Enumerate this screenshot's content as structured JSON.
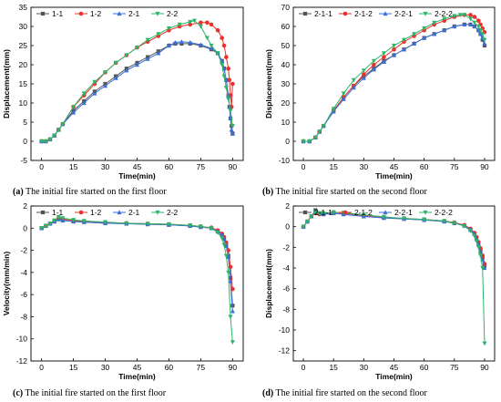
{
  "colors": {
    "s1": "#555555",
    "s2": "#e8322d",
    "s3": "#3b6fd8",
    "s4": "#2db56a"
  },
  "chart_data": [
    {
      "type": "line",
      "caption_label": "(a)",
      "caption_text": " The initial fire started on the first floor",
      "xlabel": "Time(min)",
      "ylabel": "Displacement(mm)",
      "xlim": [
        -5,
        95
      ],
      "ylim": [
        -5,
        35
      ],
      "xticks": [
        0,
        15,
        30,
        45,
        60,
        75,
        90
      ],
      "yticks": [
        -5,
        0,
        5,
        10,
        15,
        20,
        25,
        30,
        35
      ],
      "legend": "top-left",
      "series": [
        {
          "name": "1-1",
          "color": "#555555",
          "marker": "square",
          "x": [
            0,
            2,
            4,
            6,
            8,
            10,
            15,
            20,
            25,
            30,
            35,
            40,
            45,
            50,
            55,
            60,
            63,
            66,
            70,
            75,
            80,
            83,
            85,
            86,
            87,
            88,
            88.5,
            89,
            89.5,
            90
          ],
          "y": [
            0,
            0,
            0.5,
            1.5,
            3,
            4.5,
            8,
            10.5,
            13,
            15,
            17,
            19,
            20.5,
            22,
            23.5,
            25,
            25.5,
            25.5,
            25.5,
            25,
            24,
            23,
            21,
            19,
            16,
            12,
            9,
            6,
            4,
            2
          ]
        },
        {
          "name": "1-2",
          "color": "#e8322d",
          "marker": "circle",
          "x": [
            0,
            2,
            4,
            6,
            8,
            10,
            15,
            20,
            25,
            30,
            35,
            40,
            45,
            50,
            55,
            60,
            65,
            70,
            75,
            78,
            80,
            83,
            85,
            86,
            87,
            88,
            88.5,
            89,
            89.5,
            90
          ],
          "y": [
            0,
            0,
            0.5,
            1.5,
            3,
            4.5,
            9,
            12,
            15,
            18,
            20.5,
            22.5,
            24.5,
            26,
            27.5,
            29,
            30,
            30.5,
            31,
            31,
            30.5,
            29,
            27,
            25,
            22,
            19,
            16,
            12,
            9,
            15
          ]
        },
        {
          "name": "2-1",
          "color": "#3b6fd8",
          "marker": "triangle",
          "x": [
            0,
            2,
            4,
            6,
            8,
            10,
            15,
            20,
            25,
            30,
            35,
            40,
            45,
            50,
            55,
            60,
            63,
            66,
            70,
            75,
            80,
            83,
            85,
            86,
            87,
            88,
            88.5,
            89,
            89.5,
            90
          ],
          "y": [
            0,
            0,
            0.5,
            1.5,
            3,
            4.5,
            7.5,
            10,
            12.5,
            14.5,
            16.5,
            18.5,
            20,
            21.5,
            23,
            25,
            25.8,
            26,
            25.8,
            25.2,
            24.3,
            23,
            21,
            19,
            16,
            12,
            9,
            6,
            3,
            2
          ]
        },
        {
          "name": "2-2",
          "color": "#2db56a",
          "marker": "triangle-down",
          "x": [
            0,
            2,
            4,
            6,
            8,
            10,
            15,
            20,
            25,
            30,
            35,
            40,
            45,
            50,
            55,
            60,
            65,
            70,
            72,
            75,
            78,
            80,
            83,
            85,
            86,
            87,
            88,
            89,
            90
          ],
          "y": [
            0,
            0,
            0.5,
            1.5,
            3,
            4.5,
            9,
            12.5,
            15.5,
            18,
            20.5,
            22.5,
            24.5,
            26.5,
            28,
            29.5,
            30.5,
            31.2,
            31.5,
            30,
            27,
            25,
            23,
            20,
            17,
            14,
            11,
            8,
            4
          ]
        }
      ]
    },
    {
      "type": "line",
      "caption_label": "(b)",
      "caption_text": " The initial fire started on the second floor",
      "xlabel": "Time(min)",
      "ylabel": "Displacement(mm)",
      "xlim": [
        -5,
        95
      ],
      "ylim": [
        -10,
        70
      ],
      "xticks": [
        0,
        15,
        30,
        45,
        60,
        75,
        90
      ],
      "yticks": [
        -10,
        0,
        10,
        20,
        30,
        40,
        50,
        60,
        70
      ],
      "legend": "top-left",
      "series": [
        {
          "name": "2-1-1",
          "color": "#555555",
          "marker": "square",
          "x": [
            0,
            3,
            6,
            8,
            10,
            15,
            20,
            25,
            30,
            35,
            40,
            45,
            50,
            55,
            60,
            65,
            70,
            75,
            80,
            83,
            85,
            87,
            88,
            89,
            90
          ],
          "y": [
            0,
            0,
            2,
            5,
            8,
            16,
            23,
            29,
            34,
            38,
            42,
            45,
            48,
            51,
            54,
            56,
            58,
            60,
            61,
            61,
            60,
            58,
            56,
            53,
            50
          ]
        },
        {
          "name": "2-1-2",
          "color": "#e8322d",
          "marker": "circle",
          "x": [
            0,
            3,
            6,
            8,
            10,
            15,
            20,
            25,
            30,
            35,
            40,
            45,
            50,
            55,
            60,
            65,
            70,
            75,
            80,
            83,
            85,
            87,
            88,
            89,
            90
          ],
          "y": [
            0,
            0,
            2,
            5,
            8,
            16,
            23,
            29,
            35,
            40,
            44,
            48,
            52,
            55,
            58,
            61,
            63,
            65,
            66,
            66,
            65,
            63,
            61,
            59,
            57
          ]
        },
        {
          "name": "2-2-1",
          "color": "#3b6fd8",
          "marker": "triangle",
          "x": [
            0,
            3,
            6,
            8,
            10,
            15,
            20,
            25,
            30,
            35,
            40,
            45,
            50,
            55,
            60,
            65,
            70,
            75,
            80,
            83,
            85,
            87,
            88,
            89,
            90
          ],
          "y": [
            0,
            0,
            2,
            5,
            8,
            15.5,
            22,
            28,
            33,
            37.5,
            41.5,
            45,
            48,
            51,
            54,
            56,
            58,
            60,
            61,
            61,
            60,
            58,
            56,
            54,
            51
          ]
        },
        {
          "name": "2-2-2",
          "color": "#2db56a",
          "marker": "triangle-down",
          "x": [
            0,
            3,
            6,
            8,
            10,
            15,
            20,
            25,
            30,
            35,
            40,
            45,
            50,
            55,
            60,
            65,
            70,
            75,
            78,
            80,
            83,
            85,
            87,
            88,
            89,
            90
          ],
          "y": [
            0,
            0,
            2,
            5,
            8,
            17,
            25,
            32,
            37,
            42,
            46,
            50,
            53,
            56,
            59,
            62,
            64,
            65.5,
            66,
            66,
            64,
            62,
            60,
            58,
            56,
            53
          ]
        }
      ]
    },
    {
      "type": "line",
      "caption_label": "(c)",
      "caption_text": " The initial fire started on the first floor",
      "xlabel": "Time(min)",
      "ylabel": "Velocity(mm/min)",
      "xlim": [
        -5,
        95
      ],
      "ylim": [
        -12,
        2
      ],
      "xticks": [
        0,
        15,
        30,
        45,
        60,
        75,
        90
      ],
      "yticks": [
        -12,
        -10,
        -8,
        -6,
        -4,
        -2,
        0,
        2
      ],
      "legend": "top-left",
      "series": [
        {
          "name": "1-1",
          "color": "#555555",
          "marker": "square",
          "x": [
            0,
            2,
            4,
            6,
            8,
            10,
            15,
            20,
            30,
            40,
            50,
            60,
            70,
            75,
            80,
            83,
            85,
            86,
            87,
            88,
            89,
            90
          ],
          "y": [
            0,
            0.2,
            0.4,
            0.6,
            0.8,
            0.7,
            0.6,
            0.55,
            0.45,
            0.4,
            0.35,
            0.3,
            0.2,
            0.1,
            0,
            -0.3,
            -0.6,
            -1,
            -1.6,
            -2.5,
            -4.5,
            -7
          ]
        },
        {
          "name": "1-2",
          "color": "#e8322d",
          "marker": "circle",
          "x": [
            0,
            2,
            4,
            6,
            8,
            10,
            15,
            20,
            30,
            40,
            50,
            60,
            70,
            75,
            80,
            83,
            85,
            86,
            87,
            88,
            89,
            90
          ],
          "y": [
            0,
            0.2,
            0.4,
            0.6,
            0.9,
            0.8,
            0.7,
            0.6,
            0.5,
            0.45,
            0.4,
            0.35,
            0.25,
            0.15,
            0.05,
            -0.2,
            -0.5,
            -0.8,
            -1.3,
            -2,
            -3.5,
            -5.5
          ]
        },
        {
          "name": "2-1",
          "color": "#3b6fd8",
          "marker": "triangle",
          "x": [
            0,
            2,
            4,
            6,
            8,
            10,
            15,
            20,
            30,
            40,
            50,
            60,
            70,
            75,
            80,
            83,
            85,
            86,
            87,
            88,
            89,
            90
          ],
          "y": [
            0,
            0.2,
            0.4,
            0.6,
            0.8,
            0.7,
            0.6,
            0.55,
            0.45,
            0.4,
            0.35,
            0.3,
            0.2,
            0.1,
            0,
            -0.3,
            -0.6,
            -1,
            -1.6,
            -2.6,
            -4.8,
            -7.5
          ]
        },
        {
          "name": "2-2",
          "color": "#2db56a",
          "marker": "triangle-down",
          "x": [
            0,
            2,
            4,
            6,
            8,
            10,
            15,
            20,
            30,
            40,
            50,
            60,
            70,
            75,
            80,
            83,
            85,
            86,
            87,
            88,
            89,
            90
          ],
          "y": [
            0,
            0.2,
            0.4,
            0.7,
            1,
            0.9,
            0.75,
            0.65,
            0.55,
            0.45,
            0.4,
            0.35,
            0.25,
            0.15,
            0,
            -0.4,
            -0.9,
            -1.5,
            -2.5,
            -4,
            -8,
            -10.3
          ]
        }
      ]
    },
    {
      "type": "line",
      "caption_label": "(d)",
      "caption_text": " The initial fire started on the second floor",
      "xlabel": "Time(min)",
      "ylabel": "Displacement(mm)",
      "xlim": [
        -5,
        95
      ],
      "ylim": [
        -13,
        2
      ],
      "xticks": [
        0,
        15,
        30,
        45,
        60,
        75,
        90
      ],
      "yticks": [
        -12,
        -10,
        -8,
        -6,
        -4,
        -2,
        0,
        2
      ],
      "legend": "top-left",
      "series": [
        {
          "name": "2-1-1",
          "color": "#555555",
          "marker": "square",
          "x": [
            0,
            2,
            4,
            6,
            8,
            10,
            15,
            20,
            30,
            40,
            50,
            60,
            70,
            75,
            80,
            83,
            85,
            86,
            87,
            88,
            89,
            90
          ],
          "y": [
            0,
            0.5,
            1,
            1.6,
            1.3,
            1.2,
            1.3,
            1.2,
            1,
            0.85,
            0.75,
            0.65,
            0.5,
            0.35,
            0.1,
            -0.3,
            -0.7,
            -1.1,
            -1.6,
            -2.3,
            -3,
            -3.8
          ]
        },
        {
          "name": "2-1-2",
          "color": "#e8322d",
          "marker": "circle",
          "x": [
            0,
            2,
            4,
            6,
            8,
            10,
            15,
            20,
            30,
            40,
            50,
            60,
            70,
            75,
            80,
            83,
            85,
            86,
            87,
            88,
            89,
            90
          ],
          "y": [
            0,
            0.5,
            1,
            1.3,
            1.2,
            1.3,
            1.4,
            1.3,
            1.1,
            0.9,
            0.8,
            0.7,
            0.55,
            0.4,
            0.15,
            -0.2,
            -0.6,
            -1,
            -1.5,
            -2.1,
            -2.8,
            -3.6
          ]
        },
        {
          "name": "2-2-1",
          "color": "#3b6fd8",
          "marker": "triangle",
          "x": [
            0,
            2,
            4,
            6,
            8,
            10,
            15,
            20,
            30,
            40,
            50,
            60,
            70,
            75,
            80,
            83,
            85,
            86,
            87,
            88,
            89,
            90
          ],
          "y": [
            0,
            0.5,
            1,
            1.5,
            1.3,
            1.2,
            1.3,
            1.2,
            1,
            0.85,
            0.75,
            0.65,
            0.5,
            0.35,
            0.1,
            -0.3,
            -0.7,
            -1.2,
            -1.7,
            -2.4,
            -3.2,
            -4
          ]
        },
        {
          "name": "2-2-2",
          "color": "#2db56a",
          "marker": "triangle-down",
          "x": [
            0,
            2,
            4,
            6,
            8,
            10,
            15,
            20,
            30,
            40,
            50,
            60,
            70,
            75,
            80,
            83,
            85,
            86,
            87,
            88,
            89,
            90
          ],
          "y": [
            0,
            0.5,
            1,
            1.4,
            1.3,
            1.3,
            1.4,
            1.35,
            1.15,
            0.95,
            0.8,
            0.7,
            0.55,
            0.35,
            0.05,
            -0.4,
            -0.9,
            -1.4,
            -2,
            -2.8,
            -4,
            -11.3
          ]
        }
      ]
    }
  ]
}
